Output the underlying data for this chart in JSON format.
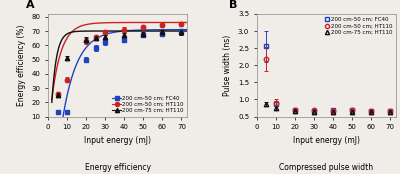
{
  "bg_color": "#f0ede8",
  "panel_A": {
    "caption": "Energy efficiency",
    "xlabel": "Input energy (mJ)",
    "ylabel": "Energy efficiency (%)",
    "ylim": [
      10,
      82
    ],
    "xlim": [
      2,
      73
    ],
    "yticks": [
      10,
      20,
      30,
      40,
      50,
      60,
      70,
      80
    ],
    "xticks": [
      0,
      10,
      20,
      30,
      40,
      50,
      60,
      70
    ],
    "series": [
      {
        "label": "200 cm-50 cm; FC40",
        "color": "#2244bb",
        "marker": "s",
        "x": [
          5,
          10,
          20,
          25,
          30,
          40,
          50,
          60,
          70
        ],
        "y": [
          13,
          13,
          50,
          58,
          62,
          64,
          67,
          68,
          70
        ],
        "yerr": [
          1.5,
          1.5,
          2,
          2,
          2,
          1.5,
          1.5,
          1.5,
          1.5
        ],
        "fit_x0": 8,
        "fit_k": 0.13,
        "fit_ymax": 71,
        "fit_ymin": 11
      },
      {
        "label": "200 cm-50 cm; HT110",
        "color": "#cc2222",
        "marker": "o",
        "x": [
          5,
          10,
          20,
          25,
          30,
          40,
          50,
          60,
          70
        ],
        "y": [
          26,
          36,
          63,
          66,
          69,
          71,
          73,
          74,
          75
        ],
        "yerr": [
          1.5,
          1.5,
          2,
          1.5,
          1.5,
          1.5,
          1.5,
          1.5,
          1.5
        ],
        "fit_x0": 2,
        "fit_k": 0.2,
        "fit_ymax": 76,
        "fit_ymin": 22
      },
      {
        "label": "200 cm-75 cm; HT110",
        "color": "#111111",
        "marker": "^",
        "x": [
          5,
          10,
          20,
          25,
          30,
          40,
          50,
          60,
          70
        ],
        "y": [
          25,
          51,
          64,
          65,
          66,
          67,
          68,
          69,
          69
        ],
        "yerr": [
          1.5,
          1.5,
          2,
          1.5,
          1.5,
          1.5,
          1.5,
          1.5,
          1.5
        ],
        "fit_x0": 2,
        "fit_k": 0.4,
        "fit_ymax": 70,
        "fit_ymin": 20
      }
    ]
  },
  "panel_B": {
    "caption": "Compressed pulse width",
    "xlabel": "Input energy (mJ)",
    "ylabel": "Pulse width (ns)",
    "ylim": [
      0.5,
      3.5
    ],
    "xlim": [
      2,
      73
    ],
    "yticks": [
      0.5,
      1.0,
      1.5,
      2.0,
      2.5,
      3.0,
      3.5
    ],
    "xticks": [
      0,
      10,
      20,
      30,
      40,
      50,
      60,
      70
    ],
    "series": [
      {
        "label": "200 cm-50 cm; FC40",
        "color": "#2244bb",
        "marker": "s",
        "x": [
          5,
          10,
          20,
          30,
          40,
          50,
          60,
          70
        ],
        "y": [
          2.55,
          0.88,
          0.68,
          0.67,
          0.68,
          0.68,
          0.67,
          0.67
        ],
        "yerr": [
          0.45,
          0.08,
          0.05,
          0.05,
          0.05,
          0.05,
          0.05,
          0.05
        ]
      },
      {
        "label": "200 cm-50 cm; HT110",
        "color": "#cc2222",
        "marker": "o",
        "x": [
          5,
          10,
          20,
          30,
          40,
          50,
          60,
          70
        ],
        "y": [
          2.18,
          0.9,
          0.68,
          0.68,
          0.67,
          0.68,
          0.67,
          0.67
        ],
        "yerr": [
          0.35,
          0.1,
          0.05,
          0.05,
          0.05,
          0.05,
          0.05,
          0.05
        ]
      },
      {
        "label": "200 cm-75 cm; HT110",
        "color": "#111111",
        "marker": "^",
        "x": [
          5,
          10,
          20,
          30,
          40,
          50,
          60,
          70
        ],
        "y": [
          0.88,
          0.75,
          0.65,
          0.64,
          0.64,
          0.64,
          0.64,
          0.64
        ],
        "yerr": [
          0.06,
          0.06,
          0.04,
          0.04,
          0.04,
          0.04,
          0.04,
          0.04
        ]
      }
    ]
  }
}
